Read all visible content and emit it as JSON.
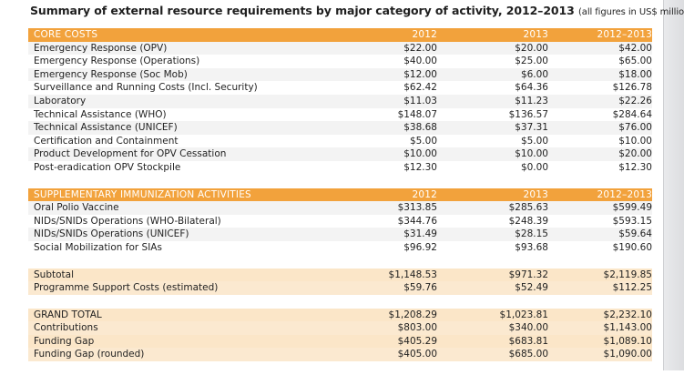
{
  "title": "Summary of external resource requirements by major category of activity, 2012–2013",
  "title_note": "(all figures in US$ millions)",
  "core": {
    "header": [
      "CORE COSTS",
      "2012",
      "2013",
      "2012–2013"
    ],
    "rows": [
      [
        "Emergency Response (OPV)",
        "$22.00",
        "$20.00",
        "$42.00"
      ],
      [
        "Emergency Response (Operations)",
        "$40.00",
        "$25.00",
        "$65.00"
      ],
      [
        "Emergency Response (Soc Mob)",
        "$12.00",
        "$6.00",
        "$18.00"
      ],
      [
        "Surveillance and Running Costs (Incl. Security)",
        "$62.42",
        "$64.36",
        "$126.78"
      ],
      [
        "Laboratory",
        "$11.03",
        "$11.23",
        "$22.26"
      ],
      [
        "Technical Assistance (WHO)",
        "$148.07",
        "$136.57",
        "$284.64"
      ],
      [
        "Technical Assistance (UNICEF)",
        "$38.68",
        "$37.31",
        "$76.00"
      ],
      [
        "Certification and Containment",
        "$5.00",
        "$5.00",
        "$10.00"
      ],
      [
        "Product Development for OPV Cessation",
        "$10.00",
        "$10.00",
        "$20.00"
      ],
      [
        "Post-eradication OPV Stockpile",
        "$12.30",
        "$0.00",
        "$12.30"
      ]
    ]
  },
  "sia": {
    "header": [
      "SUPPLEMENTARY IMMUNIZATION ACTIVITIES",
      "2012",
      "2013",
      "2012–2013"
    ],
    "rows": [
      [
        "Oral Polio Vaccine",
        "$313.85",
        "$285.63",
        "$599.49"
      ],
      [
        "NIDs/SNIDs Operations (WHO-Bilateral)",
        "$344.76",
        "$248.39",
        "$593.15"
      ],
      [
        "NIDs/SNIDs Operations (UNICEF)",
        "$31.49",
        "$28.15",
        "$59.64"
      ],
      [
        "Social Mobilization for SIAs",
        "$96.92",
        "$93.68",
        "$190.60"
      ]
    ]
  },
  "subtotal": {
    "rows": [
      [
        "Subtotal",
        "$1,148.53",
        "$971.32",
        "$2,119.85"
      ],
      [
        "Programme Support Costs (estimated)",
        "$59.76",
        "$52.49",
        "$112.25"
      ]
    ]
  },
  "grand": {
    "rows": [
      [
        "GRAND TOTAL",
        "$1,208.29",
        "$1,023.81",
        "$2,232.10"
      ],
      [
        "Contributions",
        "$803.00",
        "$340.00",
        "$1,143.00"
      ],
      [
        "Funding Gap",
        "$405.29",
        "$683.81",
        "$1,089.10"
      ],
      [
        "Funding Gap (rounded)",
        "$405.00",
        "$685.00",
        "$1,090.00"
      ]
    ]
  }
}
